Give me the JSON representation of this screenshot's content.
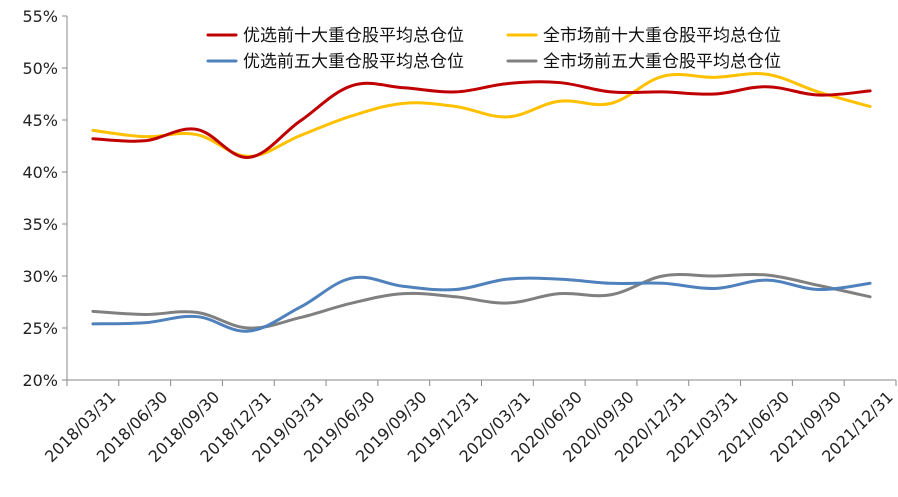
{
  "chart_data": {
    "type": "line",
    "title": "",
    "xlabel": "",
    "ylabel": "",
    "categories": [
      "2018/03/31",
      "2018/06/30",
      "2018/09/30",
      "2018/12/31",
      "2019/03/31",
      "2019/06/30",
      "2019/09/30",
      "2019/12/31",
      "2020/03/31",
      "2020/06/30",
      "2020/09/30",
      "2020/12/31",
      "2021/03/31",
      "2021/06/30",
      "2021/09/30",
      "2021/12/31"
    ],
    "y_ticks": [
      "20%",
      "25%",
      "30%",
      "35%",
      "40%",
      "45%",
      "50%",
      "55%"
    ],
    "ylim": [
      20,
      55
    ],
    "y_unit": "%",
    "grid": false,
    "legend_position": "top",
    "series": [
      {
        "name": "优选前十大重仓股平均总仓位",
        "color": "#C00000",
        "values": [
          43.2,
          43.0,
          44.1,
          41.4,
          44.9,
          48.3,
          48.1,
          47.7,
          48.5,
          48.6,
          47.7,
          47.7,
          47.5,
          48.2,
          47.4,
          47.8
        ]
      },
      {
        "name": "全市场前十大重仓股平均总仓位",
        "color": "#FFC000",
        "values": [
          44.0,
          43.4,
          43.6,
          41.5,
          43.5,
          45.4,
          46.6,
          46.3,
          45.3,
          46.8,
          46.6,
          49.2,
          49.1,
          49.4,
          47.7,
          46.3
        ]
      },
      {
        "name": "优选前五大重仓股平均总仓位",
        "color": "#4F81BD",
        "values": [
          25.4,
          25.5,
          26.1,
          24.7,
          27.0,
          29.8,
          29.0,
          28.7,
          29.7,
          29.7,
          29.3,
          29.3,
          28.8,
          29.6,
          28.7,
          29.3
        ]
      },
      {
        "name": "全市场前五大重仓股平均总仓位",
        "color": "#808080",
        "values": [
          26.6,
          26.3,
          26.5,
          25.0,
          26.0,
          27.4,
          28.3,
          28.0,
          27.4,
          28.3,
          28.2,
          30.0,
          30.0,
          30.1,
          29.1,
          28.0
        ]
      }
    ]
  }
}
